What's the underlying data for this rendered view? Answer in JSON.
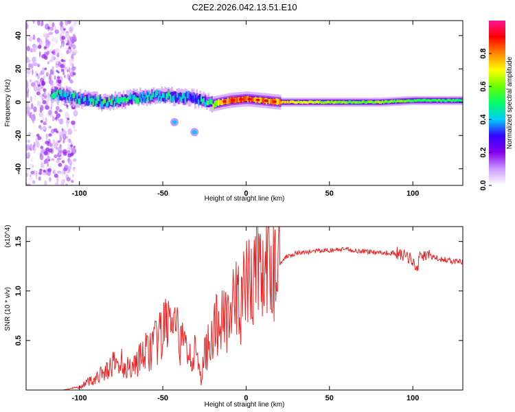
{
  "title": "C2E2.2026.042.13.51.E10",
  "chart_data": [
    {
      "type": "heatmap",
      "title": "C2E2.2026.042.13.51.E10",
      "xlabel": "Height of straight line (km)",
      "ylabel": "Frequency (Hz)",
      "xlim": [
        -132,
        130
      ],
      "ylim": [
        -50,
        49
      ],
      "xticks": [
        -100,
        -50,
        0,
        50,
        100
      ],
      "yticks": [
        40,
        20,
        0,
        -20,
        -40
      ],
      "colorbar": {
        "label": "Normalized spectral amplitude",
        "range": [
          0,
          1
        ],
        "ticks": [
          0.0,
          0.2,
          0.4,
          0.6,
          0.8
        ],
        "colors": [
          "#ffffff",
          "#cc99ff",
          "#8800ee",
          "#3300ff",
          "#00ccff",
          "#00ff66",
          "#66ff00",
          "#ffff00",
          "#ff8800",
          "#ff0000",
          "#ff1493"
        ]
      },
      "band": {
        "description": "narrow band of high amplitude near 0 Hz",
        "points": [
          {
            "x": -115,
            "freq": 5,
            "amp": 0.45
          },
          {
            "x": -100,
            "freq": 2,
            "amp": 0.4
          },
          {
            "x": -85,
            "freq": 0,
            "amp": 0.5
          },
          {
            "x": -70,
            "freq": 2,
            "amp": 0.45
          },
          {
            "x": -55,
            "freq": 4,
            "amp": 0.45
          },
          {
            "x": -40,
            "freq": 3,
            "amp": 0.4
          },
          {
            "x": -30,
            "freq": 2,
            "amp": 0.35
          },
          {
            "x": -20,
            "freq": -1,
            "amp": 0.6
          },
          {
            "x": -10,
            "freq": 1,
            "amp": 0.85
          },
          {
            "x": 0,
            "freq": 2,
            "amp": 0.8
          },
          {
            "x": 10,
            "freq": 1,
            "amp": 0.8
          },
          {
            "x": 20,
            "freq": 0,
            "amp": 0.75
          },
          {
            "x": 50,
            "freq": 0,
            "amp": 0.6
          },
          {
            "x": 80,
            "freq": 0,
            "amp": 0.6
          },
          {
            "x": 100,
            "freq": 1,
            "amp": 0.55
          },
          {
            "x": 130,
            "freq": 1,
            "amp": 0.5
          }
        ],
        "outliers": [
          {
            "x": -43,
            "freq": -12,
            "amp": 0.4
          },
          {
            "x": -31,
            "freq": -18,
            "amp": 0.4
          }
        ]
      }
    },
    {
      "type": "line",
      "xlabel": "Height of straight line (km)",
      "ylabel": "SNR (10 * v/v)",
      "y_multiplier": "(x10^4)",
      "xlim": [
        -132,
        130
      ],
      "ylim": [
        0,
        1.65
      ],
      "xticks": [
        -100,
        -50,
        0,
        50,
        100
      ],
      "yticks": [
        0.5,
        1.0,
        1.5
      ],
      "ytick_labels": [
        "0.5",
        "1.0",
        "1.5"
      ],
      "series": [
        {
          "name": "SNR",
          "color": "#ee2222",
          "x": [
            -132,
            -110,
            -100,
            -95,
            -90,
            -85,
            -80,
            -75,
            -70,
            -65,
            -60,
            -55,
            -50,
            -47,
            -45,
            -40,
            -35,
            -30,
            -27,
            -25,
            -22,
            -20,
            -18,
            -15,
            -12,
            -10,
            -8,
            -5,
            -2,
            0,
            2,
            5,
            7,
            8,
            10,
            12,
            15,
            18,
            20,
            25,
            30,
            40,
            50,
            60,
            70,
            80,
            90,
            95,
            100,
            102,
            105,
            110,
            115,
            120,
            125,
            130
          ],
          "y": [
            0.0,
            0.0,
            0.03,
            0.08,
            0.12,
            0.18,
            0.25,
            0.28,
            0.22,
            0.3,
            0.38,
            0.45,
            0.55,
            0.75,
            0.65,
            0.5,
            0.42,
            0.35,
            0.1,
            0.35,
            0.5,
            0.6,
            0.62,
            0.7,
            0.82,
            0.85,
            0.8,
            0.9,
            0.95,
            1.0,
            1.05,
            1.15,
            1.62,
            1.2,
            1.15,
            1.1,
            1.2,
            1.25,
            1.28,
            1.36,
            1.38,
            1.4,
            1.41,
            1.42,
            1.4,
            1.39,
            1.38,
            1.35,
            1.32,
            1.2,
            1.38,
            1.35,
            1.33,
            1.31,
            1.3,
            1.29
          ]
        }
      ]
    }
  ]
}
